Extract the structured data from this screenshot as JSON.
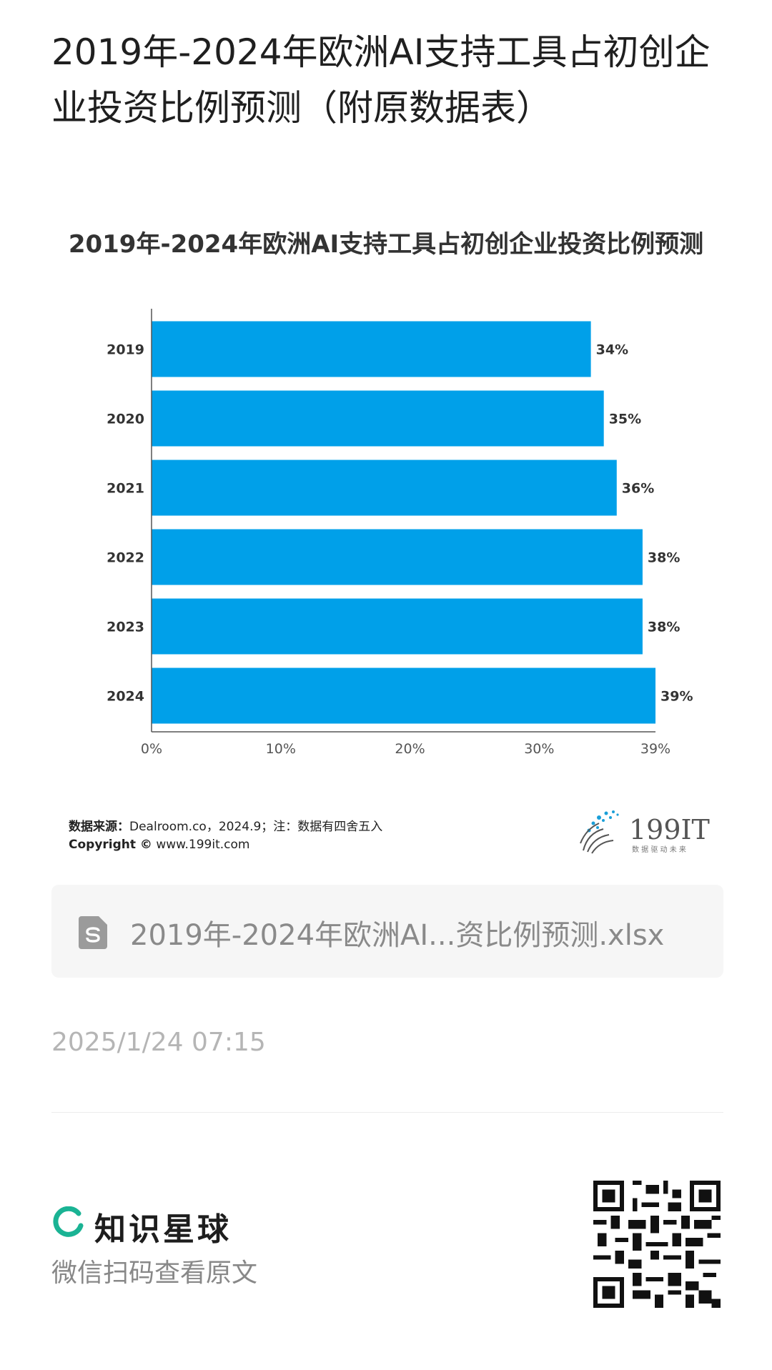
{
  "header": {
    "title": "2019年-2024年欧洲AI支持工具占初创企业投资比例预测（附原数据表）"
  },
  "chart_data": {
    "type": "bar",
    "orientation": "horizontal",
    "title": "2019年-2024年欧洲AI支持工具占初创企业投资比例预测",
    "categories": [
      "2019",
      "2020",
      "2021",
      "2022",
      "2023",
      "2024"
    ],
    "values": [
      34,
      35,
      36,
      38,
      38,
      39
    ],
    "value_labels": [
      "34%",
      "35%",
      "36%",
      "38%",
      "38%",
      "39%"
    ],
    "x_ticks": [
      "0%",
      "10%",
      "20%",
      "30%",
      "39%"
    ],
    "x_tick_values": [
      0,
      10,
      20,
      30,
      39
    ],
    "xlim": [
      0,
      39
    ],
    "xlabel": "",
    "ylabel": "",
    "bar_color": "#00a0e9",
    "grid": false
  },
  "footer": {
    "source_label": "数据来源：",
    "source_text": "Dealroom.co，2024.9；注：数据有四舍五入",
    "copyright_label": "Copyright ©",
    "copyright_text": " www.199it.com",
    "logo_text": "199IT",
    "logo_tagline": "数 据 驱 动 未 来"
  },
  "attachment": {
    "icon": "spreadsheet-file-icon",
    "file_name": "2019年-2024年欧洲AI...资比例预测.xlsx"
  },
  "meta": {
    "timestamp": "2025/1/24 07:15"
  },
  "brand": {
    "name": "知识星球",
    "hint": "微信扫码查看原文",
    "accent_color": "#1ab394"
  }
}
